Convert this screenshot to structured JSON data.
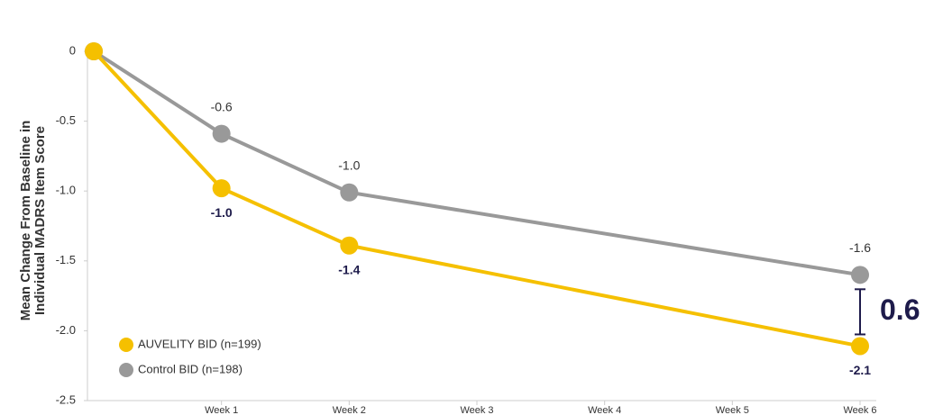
{
  "chart_data": {
    "type": "line",
    "y_label": [
      "Mean Change From Baseline in",
      "Individual MADRS Item Score"
    ],
    "x": [
      0,
      1,
      2,
      6
    ],
    "xlim": [
      0,
      6
    ],
    "xticks": [
      {
        "value": 1,
        "label": "Week 1"
      },
      {
        "value": 2,
        "label": "Week 2"
      },
      {
        "value": 3,
        "label": "Week 3"
      },
      {
        "value": 4,
        "label": "Week 4"
      },
      {
        "value": 5,
        "label": "Week 5"
      },
      {
        "value": 6,
        "label": "Week 6"
      }
    ],
    "ylim": [
      -2.5,
      0
    ],
    "yticks": [
      0,
      -0.5,
      {
        "value": -1,
        "label": "-1.0"
      },
      -1.5,
      {
        "value": -2,
        "label": "-2.0"
      },
      -2.5
    ],
    "grid": false,
    "legend": "lower left",
    "series": [
      {
        "name": "Control BID (n=198)",
        "color": "#999999",
        "values": [
          0,
          -0.59,
          -1.01,
          -1.6
        ],
        "value_labels": [
          null,
          "-0.6",
          "-1.0",
          "-1.6"
        ]
      },
      {
        "name": "AUVELITY BID (n=199)",
        "color": "#f5c000",
        "values": [
          0,
          -0.98,
          -1.39,
          -2.11
        ],
        "value_labels": [
          null,
          "-1.0",
          "-1.4",
          "-2.1"
        ]
      }
    ],
    "annotation": "0.6"
  }
}
